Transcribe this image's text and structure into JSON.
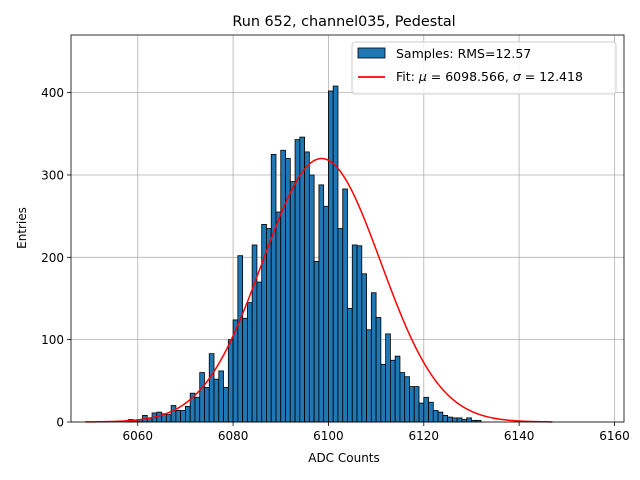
{
  "chart_data": {
    "type": "histogram",
    "title": "Run 652, channel035, Pedestal",
    "xlabel": "ADC Counts",
    "ylabel": "Entries",
    "xlim": [
      6046,
      6162
    ],
    "ylim": [
      0,
      470
    ],
    "xticks": [
      6060,
      6080,
      6100,
      6120,
      6140,
      6160
    ],
    "yticks": [
      0,
      100,
      200,
      300,
      400
    ],
    "grid": true,
    "legend_position": "top-right",
    "bar_color": "#1f77b4",
    "fit_color": "#ff0000",
    "legend": {
      "samples": "Samples: RMS=12.57",
      "fit_prefix": "Fit: ",
      "mu_symbol": "μ",
      "fit_middle": " = 6098.566, ",
      "sigma_symbol": "σ",
      "fit_suffix": " = 12.418"
    },
    "series": [
      {
        "name": "Samples: RMS=12.57",
        "bin_start": 6049,
        "bin_width": 1,
        "values": [
          0,
          0,
          0,
          0,
          0,
          0,
          0,
          0,
          0,
          3,
          2,
          3,
          8,
          5,
          11,
          12,
          10,
          9,
          20,
          14,
          14,
          19,
          35,
          30,
          60,
          42,
          83,
          52,
          62,
          42,
          100,
          124,
          202,
          126,
          145,
          215,
          170,
          240,
          235,
          325,
          255,
          330,
          320,
          292,
          343,
          346,
          328,
          300,
          195,
          288,
          262,
          402,
          408,
          235,
          283,
          138,
          215,
          214,
          180,
          112,
          157,
          127,
          70,
          107,
          75,
          80,
          60,
          55,
          43,
          43,
          23,
          30,
          24,
          14,
          12,
          8,
          6,
          5,
          5,
          3,
          5,
          2,
          2,
          0,
          0,
          0,
          0,
          0,
          0,
          0,
          0,
          0,
          0,
          0,
          0,
          0,
          0,
          0
        ]
      },
      {
        "name": "Fit",
        "mu": 6098.566,
        "sigma": 12.418,
        "amplitude": 320,
        "x_range": [
          6049,
          6147
        ]
      }
    ]
  }
}
